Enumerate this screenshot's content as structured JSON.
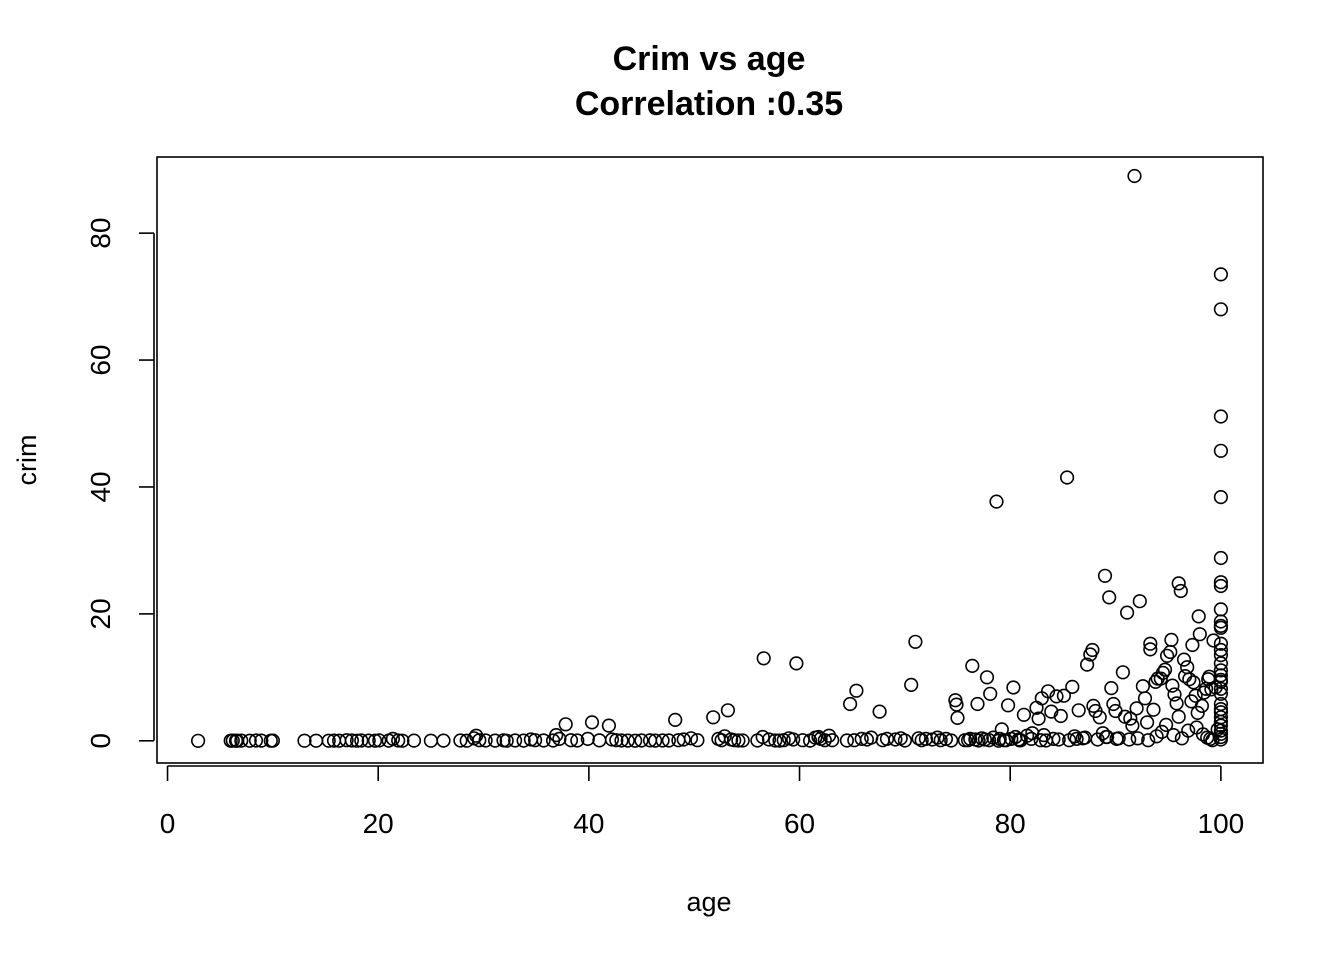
{
  "chart_data": {
    "type": "scatter",
    "title": "Crim vs age",
    "subtitle": "Correlation :0.35",
    "xlabel": "age",
    "ylabel": "crim",
    "xlim": [
      -1,
      104
    ],
    "ylim": [
      -3.5,
      92
    ],
    "x_ticks": [
      0,
      20,
      40,
      60,
      80,
      100
    ],
    "y_ticks": [
      0,
      20,
      40,
      60,
      80
    ],
    "grid": false,
    "legend": "none",
    "series": [
      {
        "points": [
          [
            2.9,
            0.0
          ],
          [
            6.0,
            0.02
          ],
          [
            6.2,
            0.03
          ],
          [
            6.5,
            0.01
          ],
          [
            6.6,
            0.02
          ],
          [
            7.0,
            0.03
          ],
          [
            7.8,
            0.02
          ],
          [
            8.4,
            0.05
          ],
          [
            8.9,
            0.03
          ],
          [
            9.8,
            0.01
          ],
          [
            10.0,
            0.03
          ],
          [
            13.0,
            0.01
          ],
          [
            14.1,
            0.02
          ],
          [
            15.3,
            0.01
          ],
          [
            15.8,
            0.03
          ],
          [
            16.3,
            0.02
          ],
          [
            17.0,
            0.1
          ],
          [
            17.5,
            0.04
          ],
          [
            18.0,
            0.02
          ],
          [
            18.4,
            0.05
          ],
          [
            19.1,
            0.03
          ],
          [
            19.7,
            0.02
          ],
          [
            20.1,
            0.06
          ],
          [
            21.0,
            0.03
          ],
          [
            21.4,
            0.3
          ],
          [
            21.9,
            0.04
          ],
          [
            22.3,
            0.02
          ],
          [
            23.4,
            0.03
          ],
          [
            25.0,
            0.01
          ],
          [
            26.2,
            0.03
          ],
          [
            27.8,
            0.04
          ],
          [
            28.4,
            0.02
          ],
          [
            29.1,
            0.4
          ],
          [
            29.3,
            0.8
          ],
          [
            29.6,
            0.1
          ],
          [
            30.2,
            0.05
          ],
          [
            31.1,
            0.03
          ],
          [
            31.9,
            0.06
          ],
          [
            32.2,
            0.02
          ],
          [
            33.0,
            0.04
          ],
          [
            33.8,
            0.03
          ],
          [
            34.5,
            0.2
          ],
          [
            34.9,
            0.1
          ],
          [
            35.7,
            0.05
          ],
          [
            36.6,
            0.04
          ],
          [
            36.9,
            0.9
          ],
          [
            37.2,
            0.3
          ],
          [
            37.8,
            2.6
          ],
          [
            38.3,
            0.1
          ],
          [
            38.9,
            0.05
          ],
          [
            39.9,
            0.3
          ],
          [
            40.3,
            2.9
          ],
          [
            41.0,
            0.06
          ],
          [
            41.9,
            2.4
          ],
          [
            42.2,
            0.2
          ],
          [
            42.6,
            0.1
          ],
          [
            43.1,
            0.04
          ],
          [
            43.7,
            0.03
          ],
          [
            44.4,
            0.02
          ],
          [
            45.0,
            0.05
          ],
          [
            45.8,
            0.06
          ],
          [
            46.3,
            0.03
          ],
          [
            47.0,
            0.04
          ],
          [
            47.6,
            0.05
          ],
          [
            48.2,
            3.3
          ],
          [
            48.5,
            0.1
          ],
          [
            49.0,
            0.2
          ],
          [
            49.7,
            0.4
          ],
          [
            50.3,
            0.1
          ],
          [
            51.8,
            3.7
          ],
          [
            52.3,
            0.3
          ],
          [
            52.6,
            0.1
          ],
          [
            52.9,
            0.7
          ],
          [
            53.2,
            4.8
          ],
          [
            53.5,
            0.2
          ],
          [
            53.8,
            0.1
          ],
          [
            54.2,
            0.05
          ],
          [
            54.6,
            0.04
          ],
          [
            56.0,
            0.05
          ],
          [
            56.6,
            13.0
          ],
          [
            56.5,
            0.6
          ],
          [
            57.1,
            0.2
          ],
          [
            57.7,
            0.04
          ],
          [
            58.1,
            0.03
          ],
          [
            58.5,
            0.1
          ],
          [
            59.0,
            0.4
          ],
          [
            59.4,
            0.2
          ],
          [
            59.7,
            12.2
          ],
          [
            60.3,
            0.1
          ],
          [
            61.0,
            0.03
          ],
          [
            61.5,
            0.5
          ],
          [
            61.8,
            0.6
          ],
          [
            62.0,
            0.3
          ],
          [
            62.4,
            0.1
          ],
          [
            62.8,
            0.8
          ],
          [
            63.1,
            0.1
          ],
          [
            64.5,
            0.05
          ],
          [
            64.8,
            5.8
          ],
          [
            65.2,
            0.1
          ],
          [
            65.4,
            7.9
          ],
          [
            65.9,
            0.3
          ],
          [
            66.4,
            0.2
          ],
          [
            66.8,
            0.5
          ],
          [
            67.6,
            4.6
          ],
          [
            67.9,
            0.1
          ],
          [
            68.3,
            0.3
          ],
          [
            69.1,
            0.2
          ],
          [
            69.6,
            0.4
          ],
          [
            70.0,
            0.05
          ],
          [
            70.6,
            8.8
          ],
          [
            71.0,
            15.6
          ],
          [
            71.3,
            0.4
          ],
          [
            71.6,
            0.1
          ],
          [
            72.0,
            0.3
          ],
          [
            72.6,
            0.2
          ],
          [
            73.1,
            0.5
          ],
          [
            73.4,
            0.1
          ],
          [
            73.9,
            0.3
          ],
          [
            74.4,
            0.05
          ],
          [
            74.8,
            6.4
          ],
          [
            74.9,
            5.7
          ],
          [
            75.0,
            3.6
          ],
          [
            75.7,
            0.1
          ],
          [
            76.2,
            0.3
          ],
          [
            76.4,
            11.8
          ],
          [
            76.7,
            0.2
          ],
          [
            76.9,
            5.8
          ],
          [
            77.3,
            0.4
          ],
          [
            77.8,
            10.0
          ],
          [
            78.1,
            7.4
          ],
          [
            78.4,
            0.5
          ],
          [
            78.7,
            37.7
          ],
          [
            79.0,
            0.3
          ],
          [
            79.2,
            1.8
          ],
          [
            79.6,
            0.1
          ],
          [
            79.8,
            5.6
          ],
          [
            80.3,
            8.4
          ],
          [
            80.5,
            0.6
          ],
          [
            80.8,
            0.2
          ],
          [
            81.3,
            4.1
          ],
          [
            81.6,
            0.8
          ],
          [
            82.1,
            1.2
          ],
          [
            82.5,
            5.2
          ],
          [
            82.7,
            3.5
          ],
          [
            83.0,
            6.7
          ],
          [
            83.2,
            0.9
          ],
          [
            83.6,
            7.8
          ],
          [
            83.9,
            4.6
          ],
          [
            84.1,
            0.3
          ],
          [
            84.4,
            7.0
          ],
          [
            84.8,
            3.9
          ],
          [
            85.1,
            7.1
          ],
          [
            85.4,
            41.5
          ],
          [
            85.9,
            8.5
          ],
          [
            86.1,
            0.7
          ],
          [
            86.5,
            4.8
          ],
          [
            86.9,
            0.4
          ],
          [
            87.3,
            12.0
          ],
          [
            87.6,
            13.6
          ],
          [
            87.8,
            14.3
          ],
          [
            87.9,
            5.5
          ],
          [
            88.1,
            4.7
          ],
          [
            88.5,
            3.7
          ],
          [
            88.8,
            1.2
          ],
          [
            89.0,
            26.0
          ],
          [
            89.2,
            0.6
          ],
          [
            89.4,
            22.6
          ],
          [
            89.6,
            8.3
          ],
          [
            89.8,
            5.8
          ],
          [
            90.0,
            4.7
          ],
          [
            90.3,
            0.4
          ],
          [
            90.7,
            10.8
          ],
          [
            90.9,
            3.8
          ],
          [
            91.1,
            20.2
          ],
          [
            91.4,
            3.5
          ],
          [
            91.6,
            2.4
          ],
          [
            91.8,
            89.0
          ],
          [
            92.0,
            5.1
          ],
          [
            92.3,
            22.0
          ],
          [
            92.6,
            8.6
          ],
          [
            92.8,
            6.7
          ],
          [
            93.0,
            2.9
          ],
          [
            93.3,
            15.3
          ],
          [
            93.3,
            14.4
          ],
          [
            93.6,
            4.9
          ],
          [
            93.8,
            9.3
          ],
          [
            94.0,
            9.8
          ],
          [
            94.3,
            9.8
          ],
          [
            94.5,
            10.7
          ],
          [
            94.7,
            11.2
          ],
          [
            94.9,
            13.4
          ],
          [
            95.2,
            14.0
          ],
          [
            95.3,
            15.9
          ],
          [
            95.4,
            8.7
          ],
          [
            95.6,
            7.3
          ],
          [
            95.8,
            5.9
          ],
          [
            96.0,
            3.8
          ],
          [
            96.0,
            24.8
          ],
          [
            96.2,
            23.6
          ],
          [
            96.5,
            12.8
          ],
          [
            96.6,
            10.2
          ],
          [
            96.8,
            11.6
          ],
          [
            97.0,
            9.7
          ],
          [
            97.2,
            6.2
          ],
          [
            97.3,
            15.1
          ],
          [
            97.4,
            9.2
          ],
          [
            97.6,
            7.1
          ],
          [
            97.8,
            4.4
          ],
          [
            97.9,
            19.6
          ],
          [
            98.0,
            16.8
          ],
          [
            98.2,
            5.5
          ],
          [
            98.4,
            7.6
          ],
          [
            98.6,
            8.2
          ],
          [
            98.8,
            9.7
          ],
          [
            98.9,
            10.1
          ],
          [
            99.1,
            8.1
          ],
          [
            99.3,
            15.8
          ],
          [
            99.5,
            8.4
          ],
          [
            100.0,
            73.5
          ],
          [
            100.0,
            68.0
          ],
          [
            100.0,
            51.1
          ],
          [
            100.0,
            45.7
          ],
          [
            100.0,
            38.4
          ],
          [
            100.0,
            28.8
          ],
          [
            100.0,
            25.0
          ],
          [
            100.0,
            24.4
          ],
          [
            100.0,
            20.7
          ],
          [
            100.0,
            18.8
          ],
          [
            100.0,
            18.1
          ],
          [
            100.0,
            17.8
          ],
          [
            100.0,
            15.3
          ],
          [
            100.0,
            14.3
          ],
          [
            100.0,
            13.5
          ],
          [
            100.0,
            12.2
          ],
          [
            100.0,
            11.1
          ],
          [
            100.0,
            10.3
          ],
          [
            100.0,
            9.6
          ],
          [
            100.0,
            9.3
          ],
          [
            100.0,
            8.2
          ],
          [
            100.0,
            7.4
          ],
          [
            100.0,
            5.8
          ],
          [
            100.0,
            5.0
          ],
          [
            100.0,
            4.5
          ],
          [
            100.0,
            3.7
          ],
          [
            100.0,
            3.0
          ],
          [
            100.0,
            2.4
          ],
          [
            100.0,
            1.6
          ],
          [
            100.0,
            1.1
          ],
          [
            100.0,
            0.6
          ],
          [
            100.0,
            0.2
          ],
          [
            81.0,
            0.1
          ],
          [
            82.0,
            0.3
          ],
          [
            82.9,
            0.1
          ],
          [
            83.4,
            0.05
          ],
          [
            84.6,
            0.2
          ],
          [
            85.6,
            0.1
          ],
          [
            86.3,
            0.3
          ],
          [
            87.1,
            0.5
          ],
          [
            88.3,
            0.2
          ],
          [
            89.1,
            0.6
          ],
          [
            90.1,
            0.3
          ],
          [
            91.3,
            0.2
          ],
          [
            92.1,
            0.4
          ],
          [
            93.1,
            0.1
          ],
          [
            93.9,
            0.7
          ],
          [
            94.4,
            1.4
          ],
          [
            94.8,
            2.5
          ],
          [
            95.5,
            0.9
          ],
          [
            96.3,
            0.4
          ],
          [
            96.9,
            1.6
          ],
          [
            97.7,
            2.1
          ],
          [
            98.3,
            1.0
          ],
          [
            98.7,
            0.5
          ],
          [
            99.0,
            0.3
          ],
          [
            99.7,
            1.8
          ],
          [
            99.2,
            0.1
          ],
          [
            76.0,
            0.1
          ],
          [
            77.0,
            0.05
          ],
          [
            77.6,
            0.2
          ],
          [
            78.0,
            0.1
          ],
          [
            78.9,
            0.02
          ],
          [
            79.4,
            0.1
          ],
          [
            80.1,
            0.3
          ],
          [
            80.9,
            0.06
          ]
        ]
      }
    ]
  }
}
